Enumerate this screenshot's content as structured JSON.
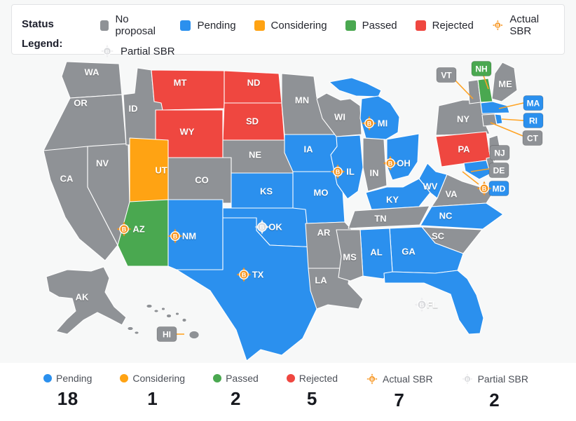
{
  "legend": {
    "title_line1": "Status",
    "title_line2": "Legend:",
    "items": [
      {
        "label": "No proposal",
        "swatch": "square",
        "status": "no_proposal"
      },
      {
        "label": "Pending",
        "swatch": "square",
        "status": "pending"
      },
      {
        "label": "Considering",
        "swatch": "square",
        "status": "considering"
      },
      {
        "label": "Passed",
        "swatch": "square",
        "status": "passed"
      },
      {
        "label": "Rejected",
        "swatch": "square",
        "status": "rejected"
      },
      {
        "label": "Actual SBR",
        "swatch": "btc-actual",
        "status": null
      },
      {
        "label": "Partial SBR",
        "swatch": "btc-partial",
        "status": null
      }
    ]
  },
  "status_colors": {
    "no_proposal": "#8F9296",
    "pending": "#2B90EE",
    "considering": "#FFA313",
    "passed": "#4AA850",
    "rejected": "#EF4740"
  },
  "sbr_colors": {
    "actual_diamond": "#F7941D",
    "actual_circle": "#F7941D",
    "partial_diamond": "#ECECEE",
    "partial_circle": "#D9DADD",
    "glyph": "#FFFFFF",
    "connector": "#FFA426"
  },
  "map": {
    "states": [
      {
        "abbr": "WA",
        "status": "no_proposal",
        "sbr": null
      },
      {
        "abbr": "OR",
        "status": "no_proposal",
        "sbr": null
      },
      {
        "abbr": "CA",
        "status": "no_proposal",
        "sbr": null
      },
      {
        "abbr": "NV",
        "status": "no_proposal",
        "sbr": null
      },
      {
        "abbr": "ID",
        "status": "no_proposal",
        "sbr": null
      },
      {
        "abbr": "MT",
        "status": "rejected",
        "sbr": null
      },
      {
        "abbr": "ND",
        "status": "rejected",
        "sbr": null
      },
      {
        "abbr": "SD",
        "status": "rejected",
        "sbr": null
      },
      {
        "abbr": "WY",
        "status": "rejected",
        "sbr": null
      },
      {
        "abbr": "CO",
        "status": "no_proposal",
        "sbr": null
      },
      {
        "abbr": "UT",
        "status": "considering",
        "sbr": null
      },
      {
        "abbr": "AZ",
        "status": "passed",
        "sbr": "actual"
      },
      {
        "abbr": "NM",
        "status": "pending",
        "sbr": "actual"
      },
      {
        "abbr": "NE",
        "status": "no_proposal",
        "sbr": null
      },
      {
        "abbr": "KS",
        "status": "pending",
        "sbr": null
      },
      {
        "abbr": "OK",
        "status": "pending",
        "sbr": "partial"
      },
      {
        "abbr": "TX",
        "status": "pending",
        "sbr": "actual"
      },
      {
        "abbr": "MN",
        "status": "no_proposal",
        "sbr": null
      },
      {
        "abbr": "IA",
        "status": "pending",
        "sbr": null
      },
      {
        "abbr": "MO",
        "status": "pending",
        "sbr": null
      },
      {
        "abbr": "AR",
        "status": "no_proposal",
        "sbr": null
      },
      {
        "abbr": "LA",
        "status": "no_proposal",
        "sbr": null
      },
      {
        "abbr": "WI",
        "status": "no_proposal",
        "sbr": null
      },
      {
        "abbr": "IL",
        "status": "pending",
        "sbr": "actual"
      },
      {
        "abbr": "IN",
        "status": "no_proposal",
        "sbr": null
      },
      {
        "abbr": "MI",
        "status": "pending",
        "sbr": "actual"
      },
      {
        "abbr": "OH",
        "status": "pending",
        "sbr": "actual"
      },
      {
        "abbr": "KY",
        "status": "pending",
        "sbr": null
      },
      {
        "abbr": "TN",
        "status": "no_proposal",
        "sbr": null
      },
      {
        "abbr": "WV",
        "status": "pending",
        "sbr": null
      },
      {
        "abbr": "VA",
        "status": "no_proposal",
        "sbr": null
      },
      {
        "abbr": "NC",
        "status": "pending",
        "sbr": null
      },
      {
        "abbr": "SC",
        "status": "no_proposal",
        "sbr": null
      },
      {
        "abbr": "GA",
        "status": "pending",
        "sbr": null
      },
      {
        "abbr": "AL",
        "status": "pending",
        "sbr": null
      },
      {
        "abbr": "MS",
        "status": "no_proposal",
        "sbr": null
      },
      {
        "abbr": "FL",
        "status": "pending",
        "sbr": "partial"
      },
      {
        "abbr": "NY",
        "status": "no_proposal",
        "sbr": null
      },
      {
        "abbr": "PA",
        "status": "rejected",
        "sbr": null
      },
      {
        "abbr": "ME",
        "status": "no_proposal",
        "sbr": null
      },
      {
        "abbr": "VT",
        "status": "no_proposal",
        "sbr": null
      },
      {
        "abbr": "NH",
        "status": "passed",
        "sbr": null
      },
      {
        "abbr": "MA",
        "status": "pending",
        "sbr": null
      },
      {
        "abbr": "RI",
        "status": "pending",
        "sbr": null
      },
      {
        "abbr": "CT",
        "status": "no_proposal",
        "sbr": null
      },
      {
        "abbr": "NJ",
        "status": "no_proposal",
        "sbr": null
      },
      {
        "abbr": "DE",
        "status": "no_proposal",
        "sbr": null
      },
      {
        "abbr": "MD",
        "status": "pending",
        "sbr": "actual"
      },
      {
        "abbr": "AK",
        "status": "no_proposal",
        "sbr": null
      },
      {
        "abbr": "HI",
        "status": "no_proposal",
        "sbr": null
      }
    ]
  },
  "stats": [
    {
      "label": "Pending",
      "count": "18",
      "swatch": "dot",
      "status": "pending"
    },
    {
      "label": "Considering",
      "count": "1",
      "swatch": "dot",
      "status": "considering"
    },
    {
      "label": "Passed",
      "count": "2",
      "swatch": "dot",
      "status": "passed"
    },
    {
      "label": "Rejected",
      "count": "5",
      "swatch": "dot",
      "status": "rejected"
    },
    {
      "label": "Actual SBR",
      "count": "7",
      "swatch": "btc-actual",
      "status": null
    },
    {
      "label": "Partial SBR",
      "count": "2",
      "swatch": "btc-partial",
      "status": null
    }
  ]
}
